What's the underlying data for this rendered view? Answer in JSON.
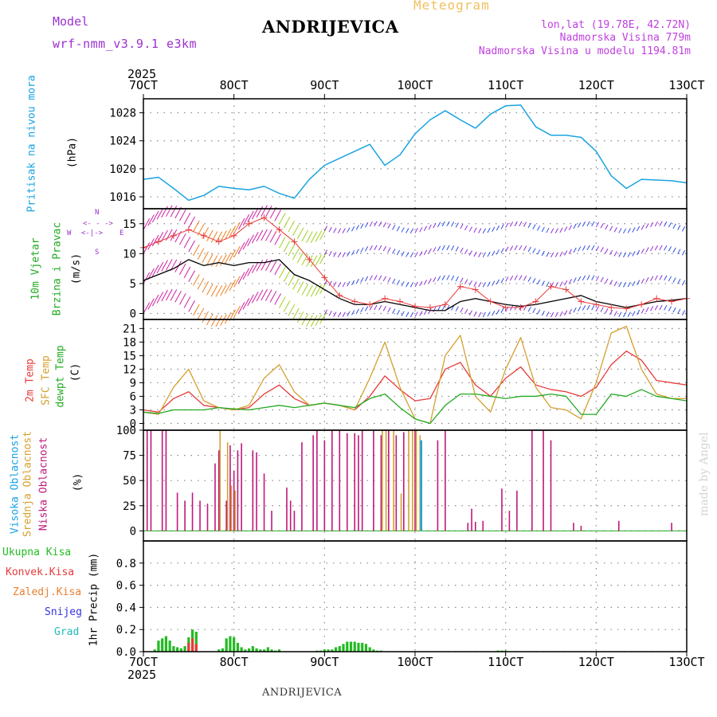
{
  "header": {
    "model_label": "Model",
    "model_name": "wrf-nmm_v3.9.1 e3km",
    "location": "ANDRIJEVICA",
    "title": "Meteogram",
    "lonlat": "lon,lat (19.78E, 42.72N)",
    "altitude": "Nadmorska Visina 779m",
    "model_altitude": "Nadmorska Visina u modelu 1194.81m",
    "footer_location": "ANDRIJEVICA",
    "watermark": "made by Angel"
  },
  "time_axis": {
    "year": "2025",
    "ticks": [
      "7OCT",
      "8OCT",
      "9OCT",
      "10OCT",
      "11OCT",
      "12OCT",
      "13OCT"
    ]
  },
  "colors": {
    "pressure": "#1aa3e0",
    "wind_speed": "#000000",
    "gust": "#e83a3a",
    "temp2m": "#e83a3a",
    "sfc_temp": "#d4a030",
    "dewpoint": "#22aa22",
    "high_cloud": "#1aa3e0",
    "mid_cloud": "#d4a030",
    "low_cloud": "#c0187a",
    "total_precip": "#22bb22",
    "conv_precip": "#e83a3a",
    "frozen_precip": "#e88030",
    "snow": "#3333dd",
    "grad": "#22bbbb",
    "label_purple": "#9b30d0",
    "label_violet": "#c040e0"
  },
  "panels": {
    "pressure": {
      "label": "Pritisak na nivou mora",
      "unit": "(hPa)"
    },
    "wind": {
      "label1": "10m Vjetar",
      "label2": "Brzina i Pravac",
      "unit": "(m/s)",
      "compass_top": "N",
      "compass_arrow_up": "<- - ->",
      "compass_left": "W",
      "compass_mid": "<-|->",
      "compass_right": "E",
      "compass_bottom": "S"
    },
    "temp": {
      "label1": "2m Temp",
      "label2": "SFC Temp",
      "label3": "dewpt Temp",
      "unit": "(C)"
    },
    "cloud": {
      "label1": "Visoka Oblacnost",
      "label2": "Srednja Oblacnost",
      "label3": "Niska Oblacnost",
      "unit": "(%)"
    },
    "precip": {
      "labels": [
        "Ukupna Kisa",
        "Konvek.Kisa",
        "Zaledj.Kisa",
        "Snijeg",
        "Grad"
      ],
      "unit": "1hr Precip (mm)"
    }
  },
  "chart_data": [
    {
      "type": "line",
      "title": "Pritisak na nivou mora",
      "ylabel": "(hPa)",
      "ylim": [
        1014.3,
        1030.0
      ],
      "yticks": [
        1016,
        1020,
        1024,
        1028
      ],
      "series": [
        {
          "name": "Pressure",
          "x": [
            0,
            4,
            8,
            12,
            16,
            20,
            24,
            28,
            32,
            36,
            40,
            44,
            48,
            52,
            56,
            60,
            64,
            68,
            72,
            76,
            80,
            84,
            88,
            92,
            96,
            100,
            104,
            108,
            112,
            116,
            120,
            124,
            128,
            132,
            136,
            140,
            144
          ],
          "values": [
            1018.5,
            1018.8,
            1017.2,
            1015.5,
            1016.2,
            1017.5,
            1017.2,
            1017.0,
            1017.5,
            1016.5,
            1015.8,
            1018.5,
            1020.5,
            1021.5,
            1022.5,
            1023.5,
            1020.5,
            1022.0,
            1025.0,
            1027.0,
            1028.3,
            1027.0,
            1025.8,
            1027.8,
            1029.0,
            1029.1,
            1026.0,
            1024.8,
            1024.8,
            1024.5,
            1022.5,
            1019.0,
            1017.2,
            1018.5,
            1018.4,
            1018.3,
            1018.0
          ]
        }
      ]
    },
    {
      "type": "line",
      "title": "10m Vjetar Brzina i Pravac",
      "ylabel": "(m/s)",
      "ylim": [
        -1,
        17.5
      ],
      "yticks": [
        0,
        5,
        10,
        15
      ],
      "series": [
        {
          "name": "Wind speed",
          "x": [
            0,
            4,
            8,
            12,
            16,
            20,
            24,
            28,
            32,
            36,
            40,
            44,
            48,
            52,
            56,
            60,
            64,
            68,
            72,
            76,
            80,
            84,
            88,
            92,
            96,
            100,
            104,
            108,
            112,
            116,
            120,
            124,
            128,
            132,
            136,
            140,
            144
          ],
          "values": [
            5.5,
            6.5,
            7.5,
            9.0,
            8.0,
            8.5,
            8.0,
            8.5,
            8.5,
            9.0,
            6.5,
            5.5,
            4.0,
            2.5,
            1.5,
            1.5,
            2.0,
            1.5,
            1.0,
            0.5,
            0.5,
            2.0,
            2.5,
            2.0,
            1.5,
            1.2,
            1.5,
            2.0,
            2.5,
            3.0,
            2.0,
            1.5,
            1.0,
            1.5,
            2.0,
            2.2,
            2.5
          ]
        },
        {
          "name": "Gust",
          "x": [
            0,
            4,
            8,
            12,
            16,
            20,
            24,
            28,
            32,
            36,
            40,
            44,
            48,
            52,
            56,
            60,
            64,
            68,
            72,
            76,
            80,
            84,
            88,
            92,
            96,
            100,
            104,
            108,
            112,
            116,
            120,
            124,
            128,
            132,
            136,
            140,
            144
          ],
          "values": [
            11.0,
            12.0,
            13.0,
            14.0,
            13.0,
            12.0,
            13.0,
            15.0,
            16.0,
            14.0,
            12.0,
            9.0,
            6.0,
            3.0,
            2.0,
            1.5,
            2.5,
            2.0,
            1.2,
            1.0,
            1.5,
            4.5,
            4.0,
            2.0,
            1.0,
            1.0,
            2.0,
            4.5,
            4.0,
            2.0,
            1.5,
            1.0,
            0.8,
            1.5,
            2.5,
            2.0,
            2.5
          ]
        }
      ]
    },
    {
      "type": "line",
      "title": "Temperature",
      "ylabel": "(C)",
      "ylim": [
        -1.5,
        23.0
      ],
      "yticks": [
        0,
        3,
        6,
        9,
        12,
        15,
        18,
        21
      ],
      "series": [
        {
          "name": "2m Temp",
          "x": [
            0,
            4,
            8,
            12,
            16,
            20,
            24,
            28,
            32,
            36,
            40,
            44,
            48,
            52,
            56,
            60,
            64,
            68,
            72,
            76,
            80,
            84,
            88,
            92,
            96,
            100,
            104,
            108,
            112,
            116,
            120,
            124,
            128,
            132,
            136,
            140,
            144
          ],
          "values": [
            3.0,
            2.5,
            5.5,
            7.0,
            4.0,
            3.5,
            3.0,
            3.5,
            6.5,
            8.5,
            5.5,
            4.0,
            4.5,
            4.0,
            3.0,
            6.0,
            10.5,
            7.5,
            5.0,
            5.5,
            12.0,
            13.5,
            8.5,
            6.0,
            10.0,
            12.5,
            8.5,
            7.5,
            7.0,
            6.0,
            8.0,
            13.0,
            16.0,
            14.0,
            9.5,
            9.0,
            8.5
          ]
        },
        {
          "name": "SFC Temp",
          "x": [
            0,
            4,
            8,
            12,
            16,
            20,
            24,
            28,
            32,
            36,
            40,
            44,
            48,
            52,
            56,
            60,
            64,
            68,
            72,
            76,
            80,
            84,
            88,
            92,
            96,
            100,
            104,
            108,
            112,
            116,
            120,
            124,
            128,
            132,
            136,
            140,
            144
          ],
          "values": [
            2.5,
            2.0,
            8.0,
            12.0,
            5.0,
            3.5,
            3.0,
            4.0,
            10.0,
            13.0,
            7.0,
            4.0,
            4.5,
            4.0,
            3.0,
            10.0,
            18.0,
            8.0,
            1.0,
            0.0,
            15.0,
            19.5,
            6.0,
            2.5,
            12.0,
            19.0,
            8.0,
            3.5,
            3.0,
            1.0,
            9.0,
            20.0,
            21.5,
            12.0,
            6.5,
            5.5,
            5.5
          ]
        },
        {
          "name": "Dewpoint",
          "x": [
            0,
            4,
            8,
            12,
            16,
            20,
            24,
            28,
            32,
            36,
            40,
            44,
            48,
            52,
            56,
            60,
            64,
            68,
            72,
            76,
            80,
            84,
            88,
            92,
            96,
            100,
            104,
            108,
            112,
            116,
            120,
            124,
            128,
            132,
            136,
            140,
            144
          ],
          "values": [
            2.5,
            2.2,
            3.0,
            3.0,
            3.0,
            3.5,
            3.2,
            3.0,
            3.5,
            4.0,
            3.5,
            4.0,
            4.5,
            4.0,
            3.5,
            5.5,
            6.5,
            3.5,
            1.0,
            0.0,
            4.0,
            6.5,
            6.5,
            6.0,
            5.5,
            6.0,
            6.0,
            6.5,
            6.0,
            2.0,
            2.0,
            6.5,
            6.0,
            7.5,
            6.0,
            5.5,
            5.0
          ]
        }
      ]
    },
    {
      "type": "bar",
      "title": "Oblacnost",
      "ylabel": "(%)",
      "ylim": [
        -10,
        100
      ],
      "yticks": [
        0,
        25,
        50,
        75,
        100
      ],
      "series": [
        {
          "name": "Niska Oblacnost",
          "x": [
            1,
            2,
            5,
            6,
            9,
            11,
            13,
            15,
            17,
            19,
            20,
            22,
            23,
            24,
            25,
            26,
            29,
            30,
            32,
            34,
            38,
            39,
            40,
            42,
            45,
            46,
            48,
            50,
            52,
            54,
            56,
            57,
            58,
            61,
            63,
            65,
            67,
            69,
            72,
            78,
            80,
            86,
            87,
            88,
            90,
            95,
            97,
            99,
            103,
            106,
            108,
            114,
            116,
            126,
            140
          ],
          "values": [
            100,
            100,
            100,
            100,
            38,
            30,
            38,
            30,
            27,
            67,
            80,
            30,
            85,
            60,
            80,
            87,
            80,
            78,
            57,
            20,
            43,
            30,
            20,
            88,
            95,
            100,
            90,
            100,
            100,
            97,
            97,
            95,
            100,
            100,
            95,
            100,
            95,
            98,
            100,
            90,
            100,
            8,
            22,
            9,
            10,
            42,
            20,
            40,
            100,
            100,
            90,
            8,
            5,
            10,
            8
          ]
        },
        {
          "name": "Srednja Oblacnost",
          "x": [
            20,
            22,
            23,
            24,
            63,
            64,
            66,
            68,
            70,
            71,
            72,
            73
          ],
          "values": [
            100,
            88,
            45,
            40,
            100,
            100,
            100,
            37,
            100,
            100,
            100,
            95
          ]
        },
        {
          "name": "Visoka Oblacnost",
          "x": [
            73
          ],
          "values": [
            90
          ]
        }
      ]
    },
    {
      "type": "bar",
      "title": "1hr Precip",
      "ylabel": "1hr Precip (mm)",
      "ylim": [
        0,
        1.0
      ],
      "yticks": [
        0.0,
        0.2,
        0.4,
        0.6,
        0.8
      ],
      "series": [
        {
          "name": "Ukupna Kisa",
          "x": [
            3,
            4,
            5,
            6,
            7,
            8,
            9,
            10,
            11,
            12,
            13,
            14,
            20,
            21,
            22,
            23,
            24,
            25,
            26,
            27,
            28,
            29,
            30,
            31,
            32,
            33,
            34,
            35,
            36,
            46,
            47,
            48,
            49,
            50,
            51,
            52,
            53,
            54,
            55,
            56,
            57,
            58,
            59,
            60,
            61,
            62,
            63,
            94,
            95,
            96
          ],
          "values": [
            0.02,
            0.1,
            0.12,
            0.14,
            0.1,
            0.05,
            0.04,
            0.03,
            0.05,
            0.13,
            0.2,
            0.18,
            0.02,
            0.03,
            0.12,
            0.14,
            0.13,
            0.08,
            0.04,
            0.02,
            0.03,
            0.05,
            0.03,
            0.02,
            0.02,
            0.04,
            0.02,
            0.01,
            0.02,
            0.01,
            0.01,
            0.02,
            0.02,
            0.02,
            0.04,
            0.05,
            0.07,
            0.09,
            0.09,
            0.09,
            0.08,
            0.08,
            0.07,
            0.04,
            0.02,
            0.01,
            0.01,
            0.01,
            0.01,
            0.01
          ]
        },
        {
          "name": "Konvek.Kisa",
          "x": [
            12,
            13,
            14
          ],
          "values": [
            0.08,
            0.12,
            0.07
          ]
        },
        {
          "name": "Zaledj.Kisa",
          "x": [],
          "values": []
        },
        {
          "name": "Snijeg",
          "x": [],
          "values": []
        },
        {
          "name": "Grad",
          "x": [],
          "values": []
        }
      ]
    }
  ]
}
